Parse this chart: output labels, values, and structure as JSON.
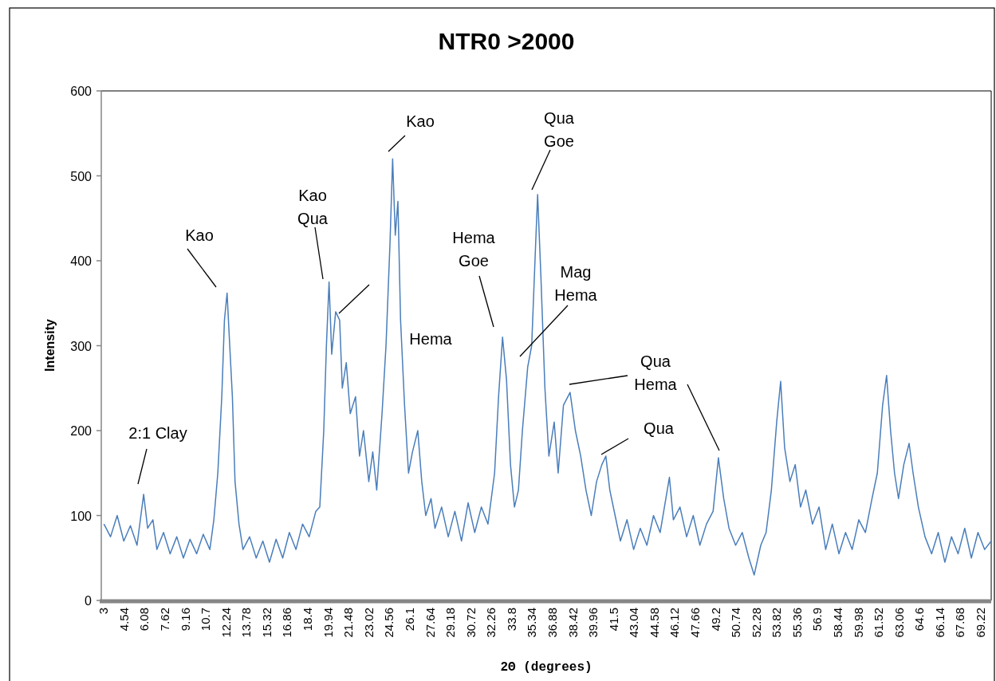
{
  "chart_data": {
    "type": "line",
    "title": "NTR0 >2000",
    "xlabel": "2Θ (degrees)",
    "ylabel": "Intensity",
    "xlim": [
      2.8,
      70
    ],
    "ylim": [
      0,
      600
    ],
    "xticks": [
      3,
      4.54,
      6.08,
      7.62,
      9.16,
      10.7,
      12.24,
      13.78,
      15.32,
      16.86,
      18.4,
      19.94,
      21.48,
      23.02,
      24.56,
      26.1,
      27.64,
      29.18,
      30.72,
      32.26,
      33.8,
      35.34,
      36.88,
      38.42,
      39.96,
      41.5,
      43.04,
      44.58,
      46.12,
      47.66,
      49.2,
      50.74,
      52.28,
      53.82,
      55.36,
      56.9,
      58.44,
      59.98,
      61.52,
      63.06,
      64.6,
      66.14,
      67.68,
      69.22
    ],
    "yticks": [
      0,
      100,
      200,
      300,
      400,
      500,
      600
    ],
    "grid": false,
    "marker": "none",
    "line_style": "solid",
    "series": [
      {
        "color": "#4a7ebb",
        "x": [
          3,
          3.5,
          4,
          4.5,
          5,
          5.5,
          6,
          6.3,
          6.7,
          7,
          7.5,
          8,
          8.5,
          9,
          9.5,
          10,
          10.5,
          11,
          11.3,
          11.6,
          11.9,
          12.1,
          12.3,
          12.5,
          12.7,
          12.9,
          13.2,
          13.5,
          14,
          14.5,
          15,
          15.5,
          16,
          16.5,
          17,
          17.5,
          18,
          18.5,
          19,
          19.3,
          19.6,
          19.8,
          20,
          20.2,
          20.5,
          20.8,
          21,
          21.3,
          21.6,
          22,
          22.3,
          22.6,
          23,
          23.3,
          23.6,
          24,
          24.3,
          24.6,
          24.8,
          25,
          25.2,
          25.4,
          25.7,
          26,
          26.3,
          26.7,
          27,
          27.3,
          27.7,
          28,
          28.5,
          29,
          29.5,
          30,
          30.5,
          31,
          31.5,
          32,
          32.5,
          32.8,
          33.1,
          33.4,
          33.7,
          34,
          34.3,
          34.6,
          35,
          35.3,
          35.6,
          35.75,
          36,
          36.3,
          36.6,
          37,
          37.3,
          37.7,
          38.2,
          38.6,
          39,
          39.4,
          39.8,
          40.2,
          40.6,
          40.9,
          41.2,
          41.6,
          42,
          42.5,
          43,
          43.5,
          44,
          44.5,
          45,
          45.7,
          46,
          46.5,
          47,
          47.5,
          48,
          48.5,
          49,
          49.4,
          49.8,
          50.2,
          50.7,
          51.2,
          51.7,
          52.1,
          52.6,
          53,
          53.4,
          53.8,
          54.1,
          54.4,
          54.8,
          55.2,
          55.6,
          56,
          56.5,
          57,
          57.5,
          58,
          58.5,
          59,
          59.5,
          60,
          60.5,
          61,
          61.4,
          61.8,
          62.1,
          62.4,
          62.7,
          63,
          63.4,
          63.8,
          64.1,
          64.5,
          65,
          65.5,
          66,
          66.5,
          67,
          67.5,
          68,
          68.5,
          69,
          69.5,
          70
        ],
        "values": [
          90,
          75,
          100,
          70,
          88,
          65,
          125,
          85,
          95,
          60,
          80,
          55,
          75,
          50,
          72,
          55,
          78,
          60,
          95,
          150,
          240,
          330,
          362,
          300,
          240,
          140,
          90,
          60,
          75,
          50,
          70,
          45,
          72,
          50,
          80,
          60,
          90,
          75,
          105,
          110,
          200,
          300,
          375,
          290,
          340,
          330,
          250,
          280,
          220,
          240,
          170,
          200,
          140,
          175,
          130,
          220,
          300,
          420,
          520,
          430,
          470,
          330,
          230,
          150,
          175,
          200,
          140,
          100,
          120,
          85,
          110,
          75,
          105,
          70,
          115,
          80,
          110,
          90,
          150,
          240,
          310,
          260,
          160,
          110,
          130,
          200,
          275,
          300,
          420,
          478,
          380,
          250,
          170,
          210,
          150,
          230,
          245,
          200,
          170,
          130,
          100,
          140,
          160,
          170,
          130,
          100,
          70,
          95,
          60,
          85,
          65,
          100,
          80,
          145,
          95,
          110,
          75,
          100,
          65,
          90,
          105,
          168,
          120,
          85,
          65,
          80,
          50,
          30,
          65,
          80,
          130,
          210,
          258,
          180,
          140,
          160,
          110,
          130,
          90,
          110,
          60,
          90,
          55,
          80,
          60,
          95,
          80,
          120,
          150,
          230,
          265,
          200,
          150,
          120,
          160,
          185,
          150,
          110,
          75,
          55,
          80,
          45,
          75,
          55,
          85,
          50,
          80,
          60,
          70
        ]
      }
    ],
    "annotations": [
      "2:1 Clay",
      "Kao",
      "Kao\nQua",
      "Hema",
      "Kao",
      "Hema\nGoe",
      "Qua\nGoe",
      "Mag\nHema",
      "Qua\nHema",
      "Qua"
    ]
  }
}
